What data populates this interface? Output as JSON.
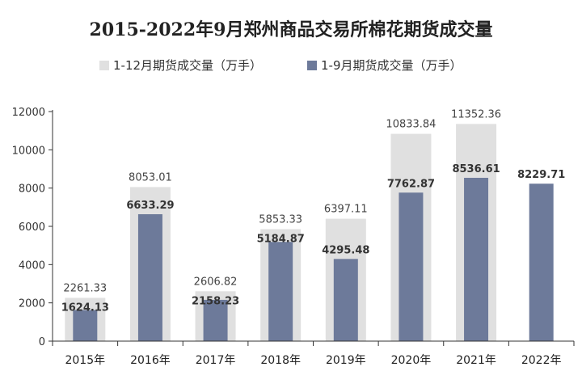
{
  "chart_data": {
    "type": "bar",
    "title": "2015-2022年9月郑州商品交易所棉花期货成交量",
    "categories": [
      "2015年",
      "2016年",
      "2017年",
      "2018年",
      "2019年",
      "2020年",
      "2021年",
      "2022年"
    ],
    "series": [
      {
        "name": "1-12月期货成交量（万手）",
        "values": [
          2261.33,
          8053.01,
          2606.82,
          5853.33,
          6397.11,
          10833.84,
          11352.36,
          null
        ],
        "labels": [
          "2261.33",
          "8053.01",
          "2606.82",
          "5853.33",
          "6397.11",
          "10833.84",
          "11352.36",
          ""
        ],
        "color": "#e0e0e0"
      },
      {
        "name": "1-9月期货成交量（万手）",
        "values": [
          1624.13,
          6633.29,
          2158.23,
          5184.87,
          4295.48,
          7762.87,
          8536.61,
          8229.71
        ],
        "labels": [
          "1624.13",
          "6633.29",
          "2158.23",
          "5184.87",
          "4295.48",
          "7762.87",
          "8536.61",
          "8229.71"
        ],
        "color": "#6d7a9a"
      }
    ],
    "ylim": [
      0,
      12000
    ],
    "yticks": [
      0,
      2000,
      4000,
      6000,
      8000,
      10000,
      12000
    ],
    "ytick_labels": [
      "0",
      "2000",
      "4000",
      "6000",
      "8000",
      "10000",
      "12000"
    ],
    "legend": "top",
    "grid": false,
    "xlabel": "",
    "ylabel": ""
  }
}
